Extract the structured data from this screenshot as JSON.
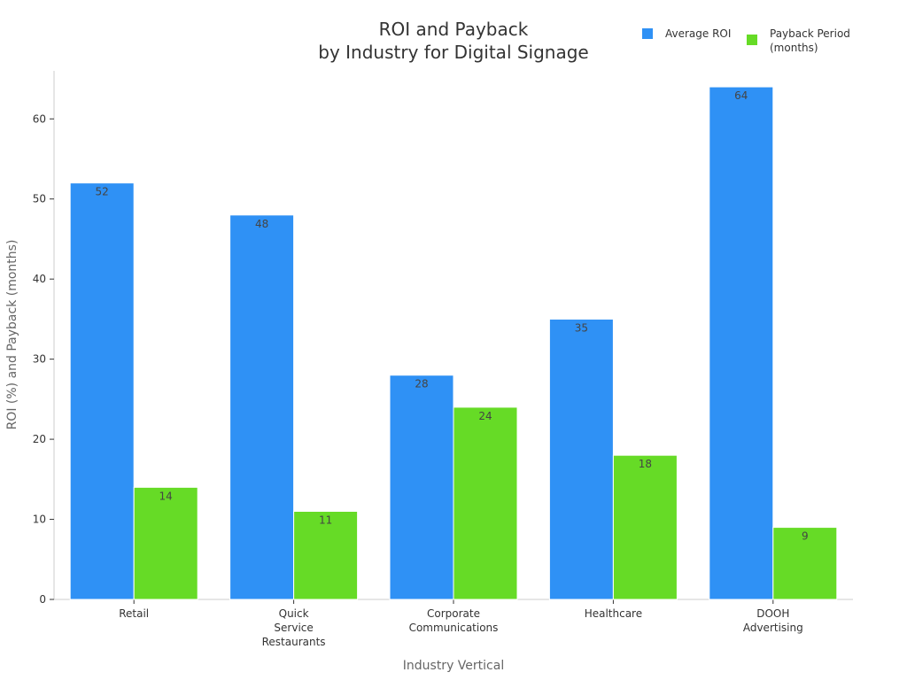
{
  "chart_data": {
    "type": "bar",
    "title": [
      "ROI and Payback",
      "by Industry for Digital Signage"
    ],
    "xlabel": "Industry Vertical",
    "ylabel": "ROI (%) and Payback (months)",
    "categories": [
      [
        "Retail"
      ],
      [
        "Quick",
        "Service",
        "Restaurants"
      ],
      [
        "Corporate",
        "Communications"
      ],
      [
        "Healthcare"
      ],
      [
        "DOOH",
        "Advertising"
      ]
    ],
    "series": [
      {
        "name": [
          "Average ROI"
        ],
        "color": "#2f91f5",
        "values": [
          52,
          48,
          28,
          35,
          64
        ]
      },
      {
        "name": [
          "Payback Period",
          "(months)"
        ],
        "color": "#66db26",
        "values": [
          14,
          11,
          24,
          18,
          9
        ]
      }
    ],
    "ylim": [
      0,
      66
    ],
    "yticks": [
      0,
      10,
      20,
      30,
      40,
      50,
      60
    ],
    "grid": false,
    "legend": "top-right",
    "data_labels": true
  }
}
